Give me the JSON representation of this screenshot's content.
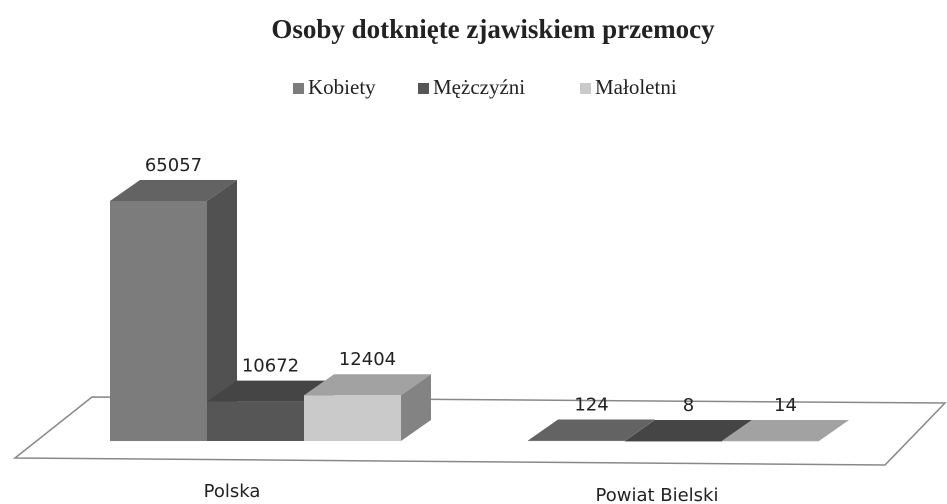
{
  "chart_data": {
    "type": "bar3d",
    "title": "Osoby dotknięte zjawiskiem przemocy",
    "categories": [
      "Polska",
      "Powiat Bielski"
    ],
    "series": [
      {
        "name": "Kobiety",
        "color": "#7c7c7c",
        "values": [
          65057,
          124
        ]
      },
      {
        "name": "Mężczyźni",
        "color": "#565656",
        "values": [
          10672,
          8
        ]
      },
      {
        "name": "Małoletni",
        "color": "#cacaca",
        "values": [
          12404,
          14
        ]
      }
    ]
  }
}
